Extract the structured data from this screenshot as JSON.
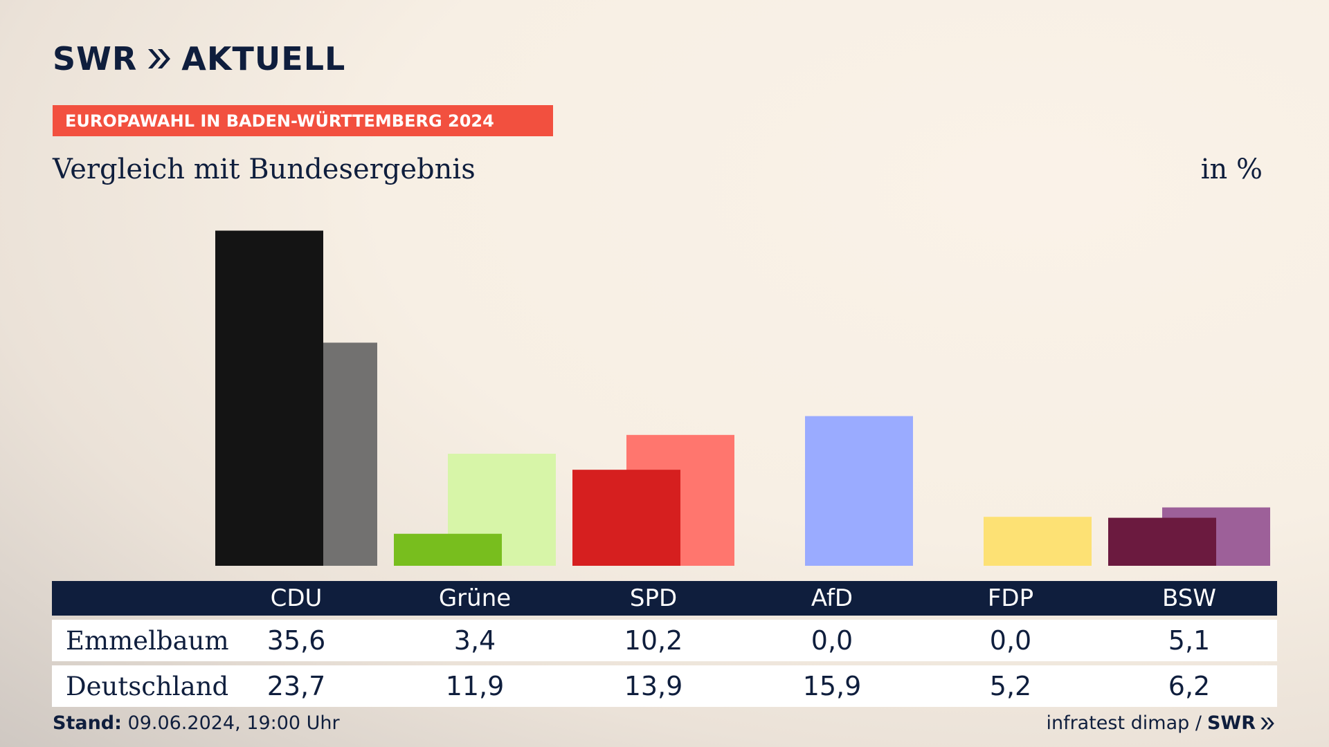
{
  "brand": {
    "name": "SWR",
    "product": "AKTUELL"
  },
  "banner": "EUROPAWAHL IN BADEN-WÜRTTEMBERG 2024",
  "subtitle": "Vergleich mit Bundesergebnis",
  "unit_label": "in %",
  "table": {
    "rows": [
      {
        "label": "Emmelbaum"
      },
      {
        "label": "Deutschland"
      }
    ]
  },
  "footer": {
    "stand_label": "Stand:",
    "stand_value": "09.06.2024, 19:00 Uhr",
    "source": "infratest dimap /",
    "source_brand": "SWR"
  },
  "chart_data": {
    "type": "bar",
    "categories": [
      "CDU",
      "Grüne",
      "SPD",
      "AfD",
      "FDP",
      "BSW"
    ],
    "series": [
      {
        "name": "Emmelbaum",
        "values": [
          35.6,
          3.4,
          10.2,
          0.0,
          0.0,
          5.1
        ]
      },
      {
        "name": "Deutschland",
        "values": [
          23.7,
          11.9,
          13.9,
          15.9,
          5.2,
          6.2
        ]
      }
    ],
    "display_values": [
      [
        "35,6",
        "3,4",
        "10,2",
        "0,0",
        "0,0",
        "5,1"
      ],
      [
        "23,7",
        "11,9",
        "13,9",
        "15,9",
        "5,2",
        "6,2"
      ]
    ],
    "colors": {
      "primary": [
        "#141414",
        "#78be1e",
        "#d61f1f",
        "#9aabff",
        "#fde174",
        "#6b1a3f"
      ],
      "secondary": [
        "#727170",
        "#d7f5a8",
        "#ff766e",
        "#9aabff",
        "#fde174",
        "#9d6099"
      ]
    },
    "ylim": [
      0,
      36
    ],
    "grid": false,
    "legend": "table-below"
  }
}
